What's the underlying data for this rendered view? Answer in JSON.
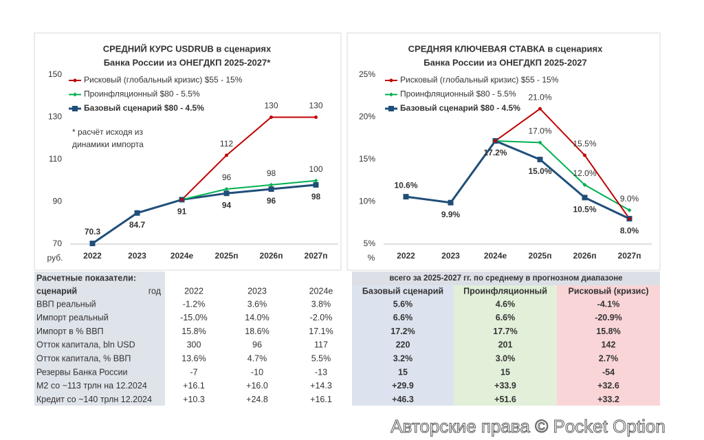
{
  "chart_data": [
    {
      "type": "line",
      "title": [
        "СРЕДНИЙ КУРС USDRUB в сценариях",
        "Банка России из ОНЕГДКП 2025-2027*"
      ],
      "annotation": [
        "* расчёт исходя из",
        "динамики импорта"
      ],
      "y_unit": "руб.",
      "categories": [
        "2022",
        "2023",
        "2024е",
        "2025п",
        "2026п",
        "2027п"
      ],
      "ylim": [
        70,
        150
      ],
      "yticks": [
        70,
        90,
        110,
        130,
        150
      ],
      "grid": false,
      "legend": "top-left",
      "series": [
        {
          "name": "Рисковый (глобальный кризис) $55 - 15%",
          "color": "#c00000",
          "marker": "circle",
          "values": [
            null,
            null,
            91,
            112,
            130,
            130
          ]
        },
        {
          "name": "Проинфляционный $80 - 5.5%",
          "color": "#00b050",
          "marker": "diamond",
          "values": [
            null,
            null,
            91,
            96,
            98,
            100
          ]
        },
        {
          "name": "Базовый сценарий $80 - 4.5%",
          "color": "#1f4e79",
          "marker": "square",
          "values": [
            70.3,
            84.7,
            91,
            94,
            96,
            98
          ]
        }
      ]
    },
    {
      "type": "line",
      "title": [
        "СРЕДНЯЯ КЛЮЧЕВАЯ СТАВКА в сценариях",
        "Банка России из ОНЕГДКП 2025-2027"
      ],
      "y_unit": "%",
      "categories": [
        "2022",
        "2023",
        "2024е",
        "2025п",
        "2026п",
        "2027п"
      ],
      "ylim": [
        5,
        25
      ],
      "yticks": [
        {
          "value": 5,
          "label": "5%"
        },
        {
          "value": 10,
          "label": "10%"
        },
        {
          "value": 15,
          "label": "15%"
        },
        {
          "value": 20,
          "label": "20%"
        },
        {
          "value": 25,
          "label": "25%"
        }
      ],
      "grid": false,
      "legend": "top-left",
      "series": [
        {
          "name": "Рисковый (глобальный кризис) $55 - 15%",
          "color": "#c00000",
          "marker": "circle",
          "values": [
            null,
            null,
            17.2,
            21.0,
            15.5,
            8.0
          ],
          "value_labels": [
            null,
            null,
            "17.2%",
            "21.0%",
            "15.5%",
            "8.0%"
          ]
        },
        {
          "name": "Проинфляционный $80 - 5.5%",
          "color": "#00b050",
          "marker": "diamond",
          "values": [
            null,
            null,
            17.2,
            17.0,
            12.0,
            9.0
          ],
          "value_labels": [
            null,
            null,
            "17.2%",
            "17.0%",
            "12.0%",
            "9.0%"
          ]
        },
        {
          "name": "Базовый сценарий $80 - 4.5%",
          "color": "#1f4e79",
          "marker": "square",
          "values": [
            10.6,
            9.9,
            17.2,
            15.0,
            10.5,
            8.0
          ],
          "value_labels": [
            "10.6%",
            "9.9%",
            "17.2%",
            "15.0%",
            "10.5%",
            "8.0%"
          ]
        }
      ]
    }
  ],
  "table": {
    "title": "Расчетные показатели:",
    "scenario_label": "сценарий",
    "year_label": "год",
    "years": [
      "2022",
      "2023",
      "2024е"
    ],
    "forecast_header": "всего за 2025-2027 гг. по среднему в прогнозном диапазоне",
    "scenarios": [
      "Базовый сценарий",
      "Проинфляционный",
      "Рисковый (кризис)"
    ],
    "rows": [
      {
        "label": "ВВП реальный",
        "cells": [
          "-1.2%",
          "3.6%",
          "3.8%",
          "5.6%",
          "4.6%",
          "-4.1%"
        ]
      },
      {
        "label": "Импорт реальный",
        "cells": [
          "-15.0%",
          "14.0%",
          "-2.0%",
          "6.6%",
          "6.6%",
          "-20.9%"
        ]
      },
      {
        "label": "Импорт в % ВВП",
        "cells": [
          "15.8%",
          "18.6%",
          "17.1%",
          "17.2%",
          "17.7%",
          "15.8%"
        ]
      },
      {
        "label": "Отток капитала, bln USD",
        "cells": [
          "300",
          "96",
          "117",
          "220",
          "201",
          "142"
        ]
      },
      {
        "label": "Отток капитала, % ВВП",
        "cells": [
          "13.6%",
          "4.7%",
          "5.5%",
          "3.2%",
          "3.0%",
          "2.7%"
        ]
      },
      {
        "label": "Резервы Банка России",
        "cells": [
          "-7",
          "-10",
          "-13",
          "15",
          "15",
          "-54"
        ]
      },
      {
        "label": "М2 со ~113 трлн на 12.2024",
        "cells": [
          "+16.1",
          "+16.0",
          "+14.3",
          "+29.9",
          "+33.9",
          "+32.6"
        ]
      },
      {
        "label": "Кредит со ~140 трлн 12.2024",
        "cells": [
          "+10.3",
          "+24.8",
          "+16.1",
          "+46.3",
          "+51.6",
          "+33.2"
        ]
      }
    ]
  },
  "watermark": "Авторские права © Pocket Option"
}
